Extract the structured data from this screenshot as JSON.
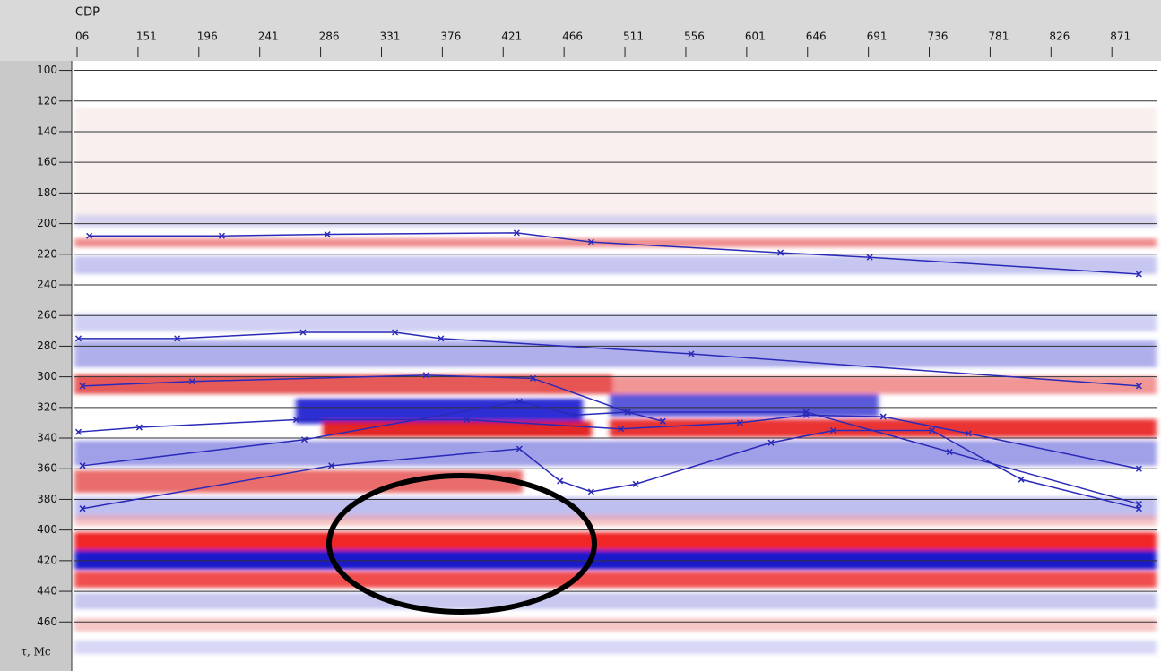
{
  "chart_data": {
    "type": "seismic-section",
    "x_label": "CDP",
    "y_label": "τ, Mc",
    "xlim": [
      104,
      904
    ],
    "ylim": [
      95,
      492
    ],
    "y_inverted": true,
    "grid": true,
    "xticks": [
      {
        "value": 106,
        "label": "06"
      },
      151,
      196,
      241,
      286,
      331,
      376,
      421,
      466,
      511,
      556,
      601,
      646,
      691,
      736,
      781,
      826,
      871
    ],
    "yticks": [
      100,
      120,
      140,
      160,
      180,
      200,
      220,
      240,
      260,
      280,
      300,
      320,
      340,
      360,
      380,
      400,
      420,
      440,
      460
    ],
    "series": [
      {
        "color": "#2a2ab8",
        "x": [
          115,
          213,
          291,
          431,
          486,
          626,
          692,
          891
        ],
        "values": [
          208,
          208,
          207,
          206,
          212,
          219,
          222,
          233
        ]
      },
      {
        "color": "#2a2ab8",
        "x": [
          107,
          180,
          273,
          341,
          375,
          560,
          891
        ],
        "values": [
          275,
          275,
          271,
          271,
          275,
          285,
          306
        ]
      },
      {
        "color": "#2a2ab8",
        "x": [
          110,
          191,
          364,
          443,
          513,
          539
        ],
        "values": [
          306,
          303,
          299,
          301,
          323,
          329
        ]
      },
      {
        "color": "#2a2ab8",
        "x": [
          107,
          152,
          268,
          394,
          508,
          596,
          645,
          702,
          765,
          891
        ],
        "values": [
          336,
          333,
          328,
          328,
          334,
          330,
          325,
          326,
          337,
          360
        ]
      },
      {
        "color": "#2a2ab8",
        "x": [
          110,
          274,
          433,
          473,
          513,
          645,
          751,
          891
        ],
        "values": [
          358,
          341,
          316,
          325,
          323,
          323,
          349,
          383
        ]
      },
      {
        "color": "#2a2ab8",
        "x": [
          110,
          294,
          433,
          463,
          486,
          519,
          619,
          665,
          738,
          804,
          891
        ],
        "values": [
          386,
          358,
          347,
          368,
          375,
          370,
          343,
          335,
          335,
          367,
          386
        ]
      }
    ]
  }
}
